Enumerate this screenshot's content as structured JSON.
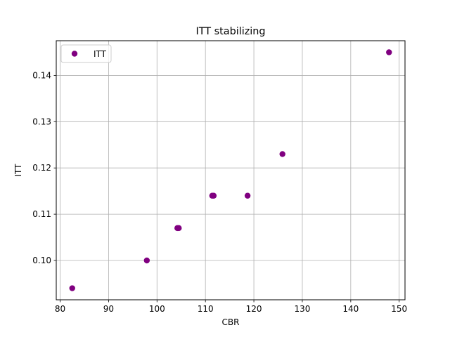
{
  "chart_data": {
    "type": "scatter",
    "title": "ITT stabilizing",
    "xlabel": "CBR",
    "ylabel": "ITT",
    "xlim": [
      79.2,
      151.2
    ],
    "ylim": [
      0.0915,
      0.1475
    ],
    "xticks": [
      80,
      90,
      100,
      110,
      120,
      130,
      140,
      150
    ],
    "yticks": [
      0.1,
      0.11,
      0.12,
      0.13,
      0.14
    ],
    "xtick_labels": [
      "80",
      "90",
      "100",
      "110",
      "120",
      "130",
      "140",
      "150"
    ],
    "ytick_labels": [
      "0.10",
      "0.11",
      "0.12",
      "0.13",
      "0.14"
    ],
    "grid": true,
    "legend": {
      "position": "top-left",
      "entries": [
        "ITT"
      ]
    },
    "series": [
      {
        "name": "ITT",
        "color": "#800080",
        "x": [
          82.5,
          97.9,
          104.2,
          104.5,
          111.4,
          111.7,
          118.7,
          125.9,
          147.9
        ],
        "y": [
          0.094,
          0.1,
          0.107,
          0.107,
          0.114,
          0.114,
          0.114,
          0.123,
          0.145
        ]
      }
    ]
  }
}
